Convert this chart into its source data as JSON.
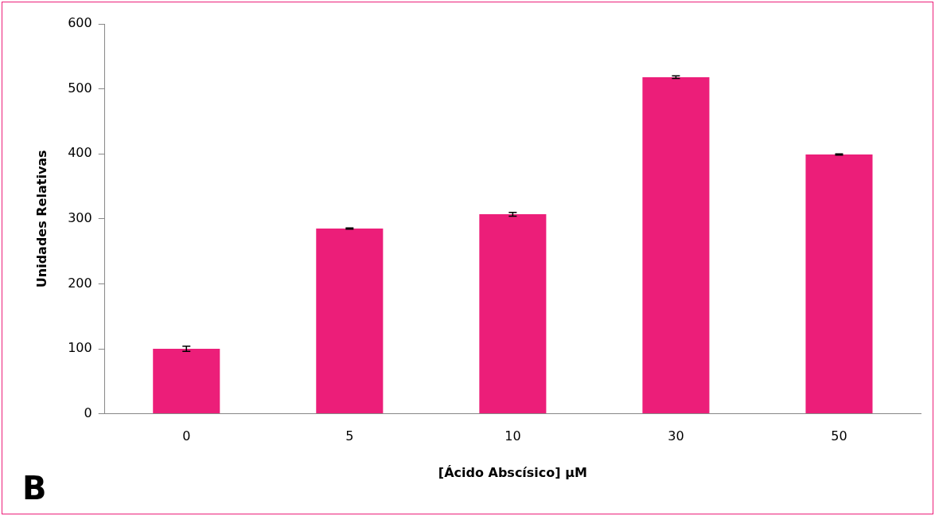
{
  "chart_data": {
    "type": "bar",
    "xlabel": "[Ácido Abscísico] μM",
    "ylabel": "Unidades Relativas",
    "categories": [
      "0",
      "5",
      "10",
      "30",
      "50"
    ],
    "values": [
      100,
      285,
      307,
      518,
      399
    ],
    "errors": [
      4,
      1,
      3,
      2,
      1
    ],
    "color": "#ec1e79",
    "ylim": [
      0,
      600
    ],
    "yticks": [
      0,
      100,
      200,
      300,
      400,
      500,
      600
    ],
    "grid": false,
    "legend": false,
    "annotations": [
      "B"
    ]
  }
}
